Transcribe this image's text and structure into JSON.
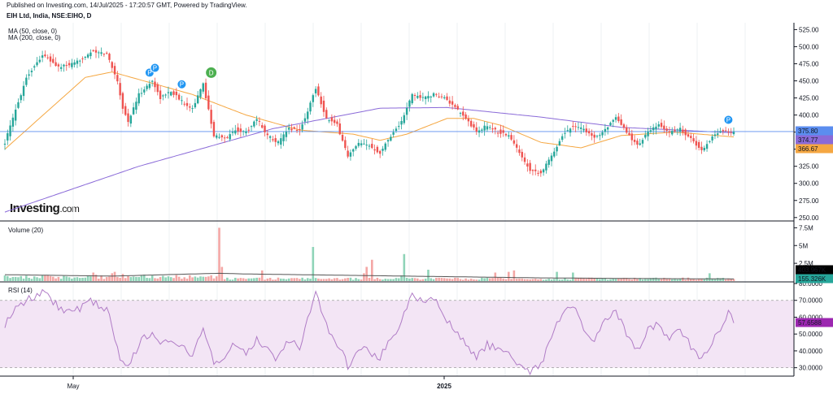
{
  "header": {
    "published": "Published on Investing.com, 14/Jul/2025 - 17:20:57 GMT, Powered by TradingView.",
    "symbol": "EIH Ltd, India, NSE:EIHO, D"
  },
  "logo": {
    "brand": "Investing",
    "suffix": ".com"
  },
  "colors": {
    "up": "#26a69a",
    "down": "#ef5350",
    "ma50": "#f5a742",
    "ma200": "#8a6ad8",
    "last": "#5b8def",
    "rsi": "#b07cc6",
    "rsiBand": "#f3e5f5",
    "vol_up": "#8fd4b8",
    "vol_down": "#f4a7a5"
  },
  "chart_data": [
    {
      "type": "candlestick",
      "indicators": [
        "MA (50, close, 0)",
        "MA (200, close, 0)"
      ],
      "y_ticks": [
        "525.00",
        "500.00",
        "475.00",
        "450.00",
        "425.00",
        "400.00",
        "375.00",
        "350.00",
        "325.00",
        "300.00",
        "275.00",
        "250.00"
      ],
      "ylim": [
        245,
        535
      ],
      "x_labels": [
        "May",
        "2025"
      ],
      "close_anchors": [
        [
          0,
          360
        ],
        [
          3,
          395
        ],
        [
          8,
          455
        ],
        [
          14,
          488
        ],
        [
          20,
          470
        ],
        [
          26,
          475
        ],
        [
          32,
          492
        ],
        [
          38,
          490
        ],
        [
          42,
          450
        ],
        [
          44,
          410
        ],
        [
          46,
          390
        ],
        [
          50,
          430
        ],
        [
          55,
          450
        ],
        [
          58,
          425
        ],
        [
          62,
          435
        ],
        [
          66,
          420
        ],
        [
          70,
          410
        ],
        [
          74,
          445
        ],
        [
          78,
          370
        ],
        [
          82,
          365
        ],
        [
          86,
          378
        ],
        [
          90,
          375
        ],
        [
          94,
          395
        ],
        [
          98,
          370
        ],
        [
          102,
          360
        ],
        [
          106,
          380
        ],
        [
          110,
          378
        ],
        [
          112,
          395
        ],
        [
          116,
          440
        ],
        [
          120,
          395
        ],
        [
          124,
          385
        ],
        [
          128,
          340
        ],
        [
          132,
          358
        ],
        [
          136,
          355
        ],
        [
          140,
          345
        ],
        [
          144,
          370
        ],
        [
          148,
          390
        ],
        [
          152,
          430
        ],
        [
          156,
          425
        ],
        [
          160,
          430
        ],
        [
          164,
          425
        ],
        [
          168,
          410
        ],
        [
          172,
          395
        ],
        [
          176,
          375
        ],
        [
          180,
          385
        ],
        [
          184,
          375
        ],
        [
          188,
          370
        ],
        [
          192,
          345
        ],
        [
          196,
          320
        ],
        [
          200,
          315
        ],
        [
          204,
          340
        ],
        [
          208,
          370
        ],
        [
          212,
          385
        ],
        [
          216,
          380
        ],
        [
          220,
          365
        ],
        [
          224,
          380
        ],
        [
          228,
          395
        ],
        [
          232,
          375
        ],
        [
          236,
          355
        ],
        [
          240,
          375
        ],
        [
          244,
          385
        ],
        [
          248,
          375
        ],
        [
          252,
          380
        ],
        [
          256,
          365
        ],
        [
          260,
          348
        ],
        [
          264,
          368
        ],
        [
          268,
          378
        ],
        [
          272,
          375
        ]
      ],
      "ma50_anchors": [
        [
          0,
          350
        ],
        [
          30,
          455
        ],
        [
          40,
          463
        ],
        [
          70,
          430
        ],
        [
          90,
          400
        ],
        [
          110,
          378
        ],
        [
          130,
          372
        ],
        [
          140,
          363
        ],
        [
          150,
          372
        ],
        [
          165,
          395
        ],
        [
          175,
          395
        ],
        [
          185,
          385
        ],
        [
          200,
          360
        ],
        [
          215,
          352
        ],
        [
          230,
          370
        ],
        [
          250,
          375
        ],
        [
          272,
          368
        ]
      ],
      "ma200_anchors": [
        [
          0,
          258
        ],
        [
          50,
          325
        ],
        [
          100,
          380
        ],
        [
          140,
          410
        ],
        [
          165,
          411
        ],
        [
          200,
          397
        ],
        [
          230,
          382
        ],
        [
          272,
          374
        ]
      ],
      "price_labels": [
        {
          "value": "375.80",
          "color": "#5b8def"
        },
        {
          "value": "374.77",
          "color": "#8a6ad8"
        },
        {
          "value": "366.67",
          "color": "#f5a742"
        }
      ],
      "events": [
        {
          "bar": 54,
          "kind": "P",
          "y": 462
        },
        {
          "bar": 56,
          "kind": "P",
          "y": 469
        },
        {
          "bar": 66,
          "kind": "P",
          "y": 445
        },
        {
          "bar": 77,
          "kind": "D",
          "y": 462
        },
        {
          "bar": 270,
          "kind": "P",
          "y": 393
        }
      ]
    },
    {
      "type": "bar",
      "title": "Volume (20)",
      "y_ticks": [
        "7.5M",
        "5M",
        "2.5M"
      ],
      "ylim": [
        0,
        8000000
      ],
      "spikes": [
        [
          6,
          700000
        ],
        [
          33,
          1200000
        ],
        [
          34,
          900000
        ],
        [
          40,
          1100000
        ],
        [
          41,
          1300000
        ],
        [
          44,
          1000000
        ],
        [
          52,
          900000
        ],
        [
          64,
          850000
        ],
        [
          80,
          7500000
        ],
        [
          81,
          2000000
        ],
        [
          96,
          1500000
        ],
        [
          115,
          4800000
        ],
        [
          134,
          1100000
        ],
        [
          135,
          2000000
        ],
        [
          137,
          3000000
        ],
        [
          148,
          800000
        ],
        [
          149,
          3800000
        ],
        [
          158,
          1600000
        ],
        [
          183,
          1200000
        ],
        [
          188,
          1300000
        ],
        [
          190,
          1500000
        ],
        [
          206,
          1300000
        ],
        [
          212,
          1200000
        ],
        [
          263,
          1100000
        ]
      ],
      "ma_anchors": [
        [
          0,
          900000
        ],
        [
          40,
          700000
        ],
        [
          80,
          1100000
        ],
        [
          90,
          1000000
        ],
        [
          120,
          850000
        ],
        [
          160,
          650000
        ],
        [
          200,
          450000
        ],
        [
          240,
          350000
        ],
        [
          272,
          300000
        ]
      ],
      "price_labels": [
        {
          "value": "403.967K",
          "color": "#000000"
        },
        {
          "value": "155.326K",
          "color": "#26a69a"
        }
      ]
    },
    {
      "type": "line",
      "title": "RSI (14)",
      "y_ticks": [
        "80.0000",
        "70.0000",
        "60.0000",
        "50.0000",
        "40.0000",
        "30.0000"
      ],
      "ylim": [
        25,
        80
      ],
      "band": [
        30,
        70
      ],
      "anchors": [
        [
          0,
          55
        ],
        [
          3,
          63
        ],
        [
          8,
          70
        ],
        [
          14,
          75
        ],
        [
          20,
          66
        ],
        [
          26,
          63
        ],
        [
          32,
          70
        ],
        [
          38,
          65
        ],
        [
          42,
          42
        ],
        [
          44,
          32
        ],
        [
          46,
          30
        ],
        [
          50,
          44
        ],
        [
          55,
          52
        ],
        [
          58,
          43
        ],
        [
          62,
          48
        ],
        [
          66,
          42
        ],
        [
          70,
          37
        ],
        [
          74,
          55
        ],
        [
          78,
          33
        ],
        [
          82,
          36
        ],
        [
          86,
          45
        ],
        [
          90,
          39
        ],
        [
          94,
          47
        ],
        [
          98,
          40
        ],
        [
          102,
          35
        ],
        [
          106,
          46
        ],
        [
          110,
          42
        ],
        [
          112,
          52
        ],
        [
          116,
          77
        ],
        [
          120,
          55
        ],
        [
          124,
          45
        ],
        [
          128,
          31
        ],
        [
          132,
          42
        ],
        [
          136,
          40
        ],
        [
          140,
          36
        ],
        [
          144,
          47
        ],
        [
          148,
          58
        ],
        [
          152,
          74
        ],
        [
          156,
          70
        ],
        [
          160,
          72
        ],
        [
          164,
          60
        ],
        [
          168,
          52
        ],
        [
          172,
          45
        ],
        [
          176,
          36
        ],
        [
          180,
          44
        ],
        [
          184,
          40
        ],
        [
          188,
          37
        ],
        [
          192,
          33
        ],
        [
          196,
          28
        ],
        [
          200,
          32
        ],
        [
          204,
          48
        ],
        [
          208,
          62
        ],
        [
          212,
          66
        ],
        [
          216,
          54
        ],
        [
          220,
          47
        ],
        [
          224,
          57
        ],
        [
          228,
          63
        ],
        [
          232,
          50
        ],
        [
          236,
          40
        ],
        [
          240,
          53
        ],
        [
          244,
          56
        ],
        [
          248,
          47
        ],
        [
          252,
          52
        ],
        [
          256,
          43
        ],
        [
          260,
          34
        ],
        [
          264,
          46
        ],
        [
          268,
          55
        ],
        [
          270,
          62
        ],
        [
          272,
          57
        ]
      ],
      "price_labels": [
        {
          "value": "57.6588",
          "color": "#9c27b0"
        }
      ]
    }
  ]
}
